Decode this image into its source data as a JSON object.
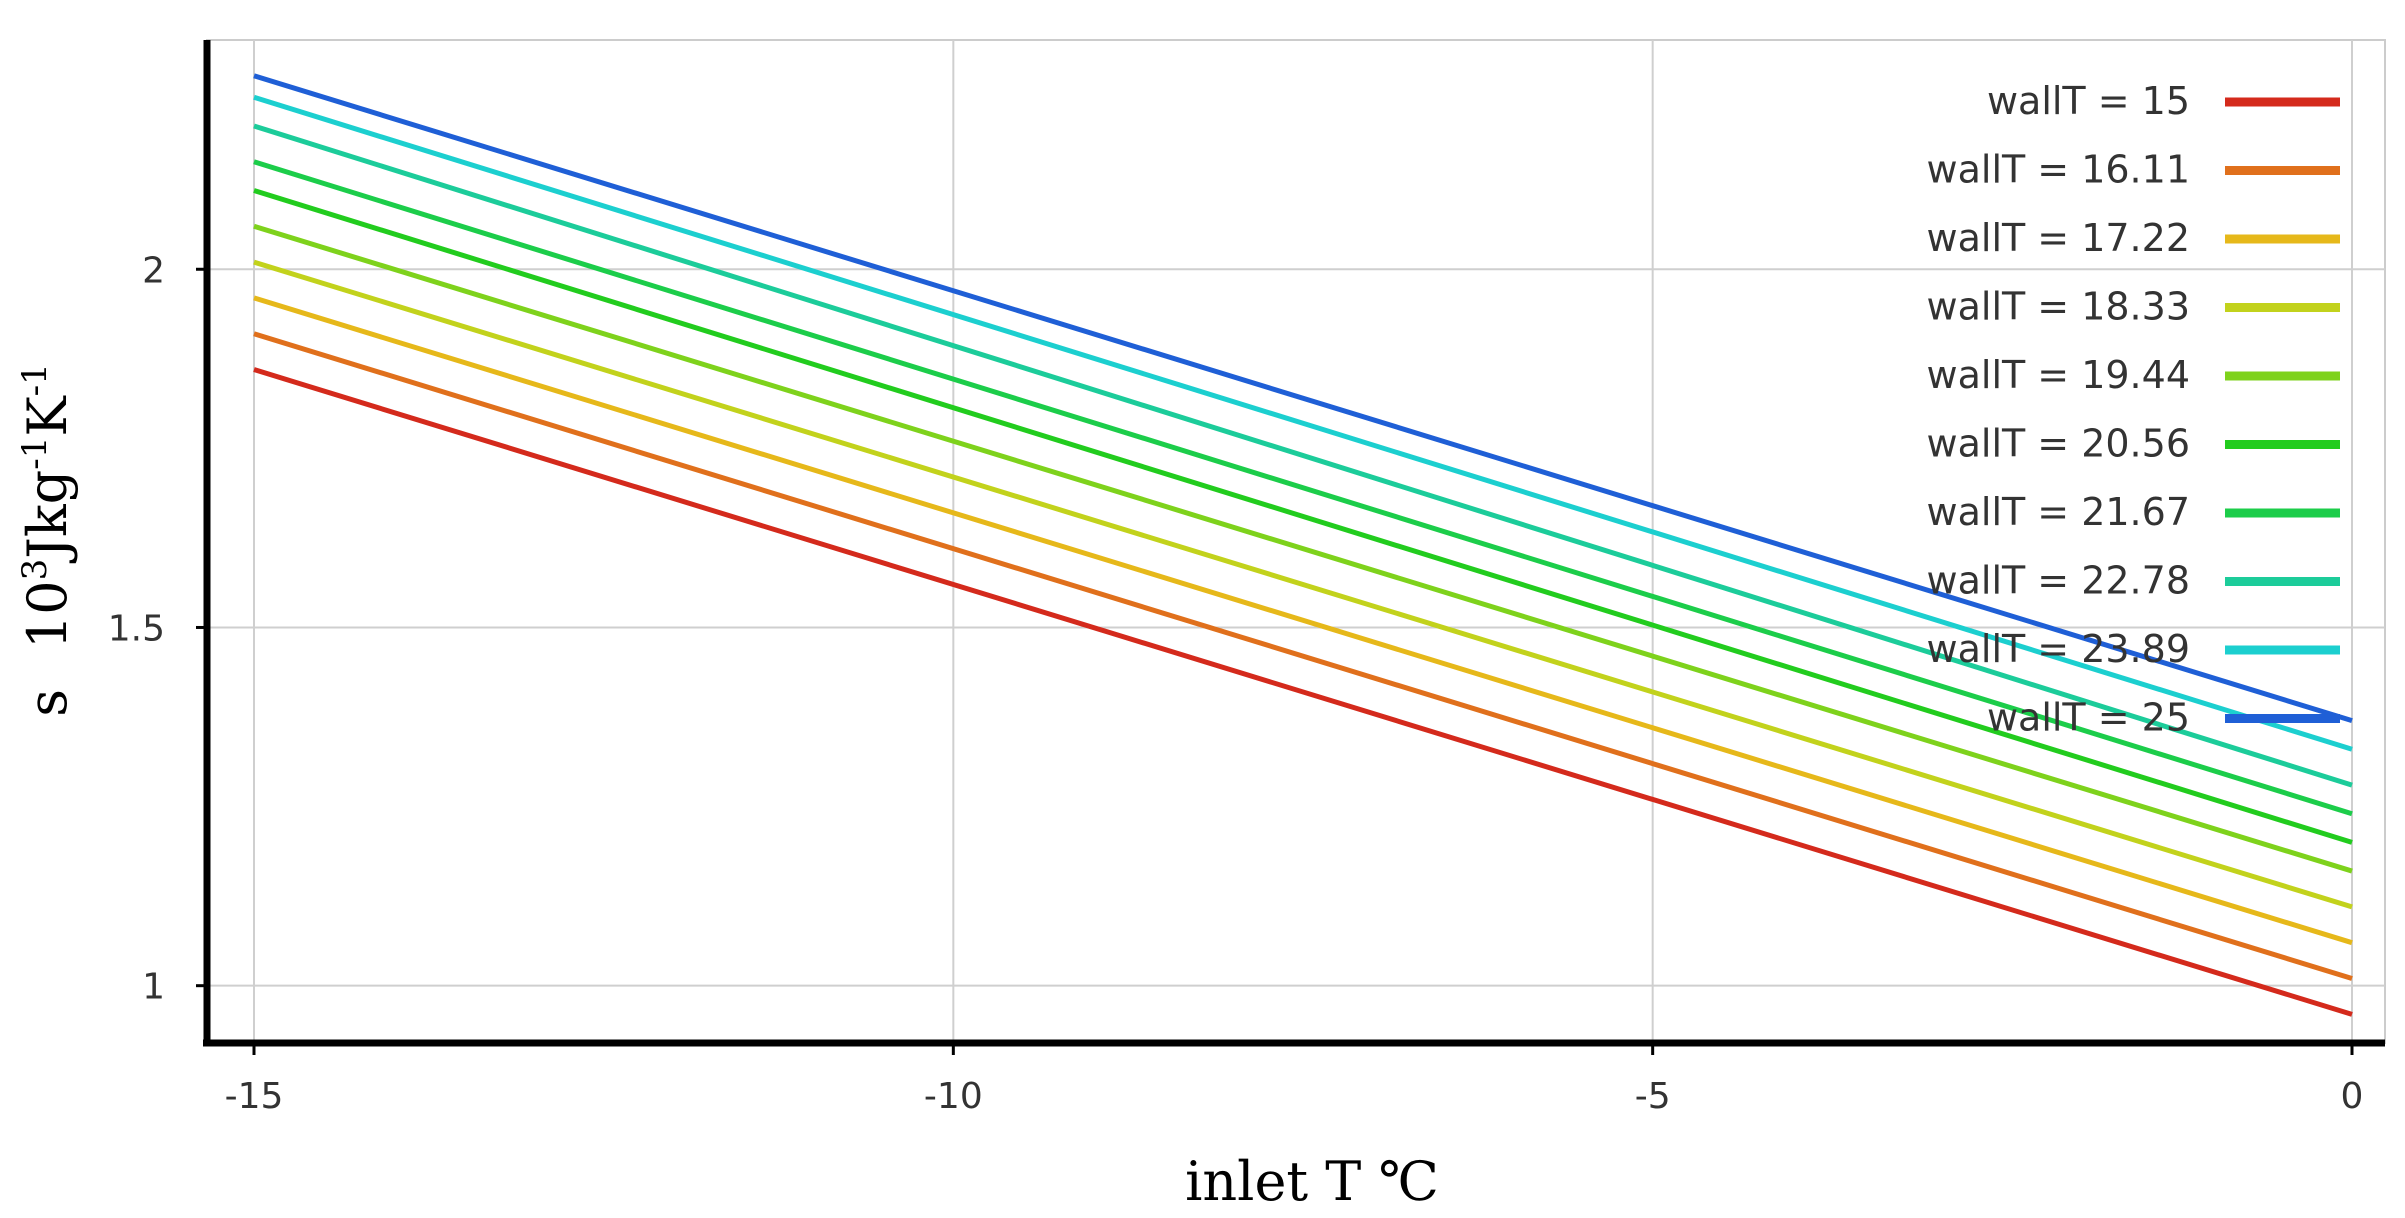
{
  "chart_data": {
    "type": "line",
    "xlabel": "inlet  T  ℃",
    "ylabel": {
      "symbol": "s",
      "base": "10",
      "exp1": "3",
      "mid": "Jkg",
      "exp2": "-1",
      "end": "K",
      "exp3": "-1"
    },
    "xlim": [
      -15,
      0
    ],
    "ylim": [
      0.92,
      2.32
    ],
    "xticks": [
      {
        "value": -15,
        "label": "-15"
      },
      {
        "value": -10,
        "label": "-10"
      },
      {
        "value": -5,
        "label": "-5"
      },
      {
        "value": 0,
        "label": "0"
      }
    ],
    "yticks": [
      {
        "value": 1,
        "label": "1"
      },
      {
        "value": 1.5,
        "label": "1.5"
      },
      {
        "value": 2,
        "label": "2"
      }
    ],
    "grid": true,
    "legend_position": "top-right",
    "series": [
      {
        "name": "wallT = 15",
        "color": "#d42a1c",
        "x": [
          -15,
          0
        ],
        "y": [
          1.86,
          0.96
        ]
      },
      {
        "name": "wallT = 16.11",
        "color": "#e0701c",
        "x": [
          -15,
          0
        ],
        "y": [
          1.91,
          1.01
        ]
      },
      {
        "name": "wallT = 17.22",
        "color": "#e6b81a",
        "x": [
          -15,
          0
        ],
        "y": [
          1.96,
          1.06
        ]
      },
      {
        "name": "wallT = 18.33",
        "color": "#c2d21c",
        "x": [
          -15,
          0
        ],
        "y": [
          2.01,
          1.11
        ]
      },
      {
        "name": "wallT = 19.44",
        "color": "#7ed21c",
        "x": [
          -15,
          0
        ],
        "y": [
          2.06,
          1.16
        ]
      },
      {
        "name": "wallT = 20.56",
        "color": "#22cc1e",
        "x": [
          -15,
          0
        ],
        "y": [
          2.11,
          1.2
        ]
      },
      {
        "name": "wallT = 21.67",
        "color": "#1ccd4a",
        "x": [
          -15,
          0
        ],
        "y": [
          2.15,
          1.24
        ]
      },
      {
        "name": "wallT = 22.78",
        "color": "#1ccc9a",
        "x": [
          -15,
          0
        ],
        "y": [
          2.2,
          1.28
        ]
      },
      {
        "name": "wallT = 23.89",
        "color": "#1ccfcf",
        "x": [
          -15,
          0
        ],
        "y": [
          2.24,
          1.33
        ]
      },
      {
        "name": "wallT = 25",
        "color": "#1f5fd6",
        "x": [
          -15,
          0
        ],
        "y": [
          2.27,
          1.37
        ]
      }
    ]
  }
}
